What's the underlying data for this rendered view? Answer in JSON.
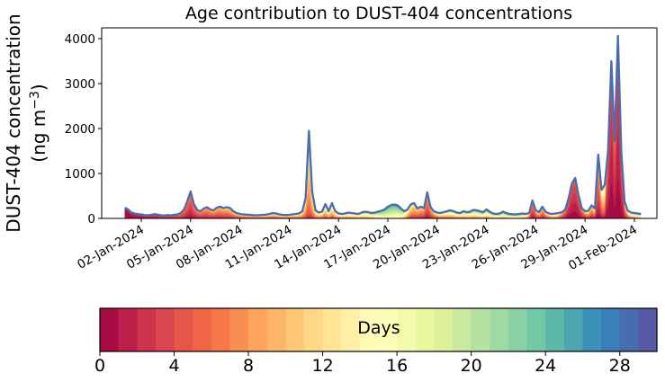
{
  "figure": {
    "title": "Age contribution to DUST-404 concentrations",
    "background_color": "#ffffff",
    "line_color": "#4a6cb0",
    "axis_color": "#000000",
    "y_axis": {
      "label_line1": "DUST-404 concentration",
      "label_units_prefix": "(ng m",
      "label_units_sup": "−3",
      "label_units_suffix": ")",
      "ticks": [
        0,
        1000,
        2000,
        3000,
        4000
      ],
      "limit": [
        0,
        4240
      ]
    },
    "x_axis": {
      "tick_labels": [
        "02-Jan-2024",
        "05-Jan-2024",
        "08-Jan-2024",
        "11-Jan-2024",
        "14-Jan-2024",
        "17-Jan-2024",
        "20-Jan-2024",
        "23-Jan-2024",
        "26-Jan-2024",
        "29-Jan-2024",
        "01-Feb-2024"
      ],
      "tick_day_offsets": [
        1,
        4,
        7,
        10,
        13,
        16,
        19,
        22,
        25,
        28,
        31
      ]
    },
    "colorbar": {
      "label": "Days",
      "ticks": [
        0,
        4,
        8,
        12,
        16,
        20,
        24,
        28
      ],
      "vmin": 0,
      "vmax": 30,
      "segments": 30,
      "cmap_name": "Spectral",
      "cmap_anchors": [
        "#9e0142",
        "#d53e4f",
        "#f46d43",
        "#fdae61",
        "#fee08b",
        "#ffffbf",
        "#e6f598",
        "#abdda4",
        "#66c2a5",
        "#3288bd",
        "#5e4fa2"
      ]
    }
  },
  "chart_data": {
    "type": "area",
    "subtype": "stacked_age_layers",
    "title": "Age contribution to DUST-404 concentrations",
    "ylabel": "DUST-404 concentration (ng m^-3)",
    "colorbar_label": "Days",
    "x_start_date": "2024-01-01",
    "x_step_days": 0.2,
    "n_points": 158,
    "n_age_bins": 30,
    "age_bin_width_days": 1,
    "ylim": [
      0,
      4240
    ],
    "peak_annotations": [
      {
        "date": "05-Jan-2024",
        "value": 600
      },
      {
        "date": "12-Jan-2024",
        "value": 1950
      },
      {
        "date": "19-Jan-2024",
        "value": 580
      },
      {
        "date": "28-Jan-2024",
        "value": 900
      },
      {
        "date": "29-Jan-2024",
        "value": 1420
      },
      {
        "date": "30-Jan-2024",
        "value": 3500
      },
      {
        "date": "31-Jan-2024",
        "value": 4060
      }
    ],
    "totals": [
      240,
      200,
      130,
      110,
      95,
      90,
      75,
      70,
      80,
      95,
      85,
      70,
      65,
      75,
      70,
      80,
      90,
      120,
      200,
      380,
      600,
      320,
      190,
      160,
      220,
      250,
      200,
      180,
      240,
      260,
      230,
      250,
      230,
      160,
      120,
      100,
      90,
      85,
      80,
      75,
      70,
      75,
      80,
      85,
      100,
      120,
      110,
      90,
      80,
      75,
      80,
      90,
      100,
      110,
      160,
      450,
      1950,
      600,
      180,
      130,
      150,
      320,
      160,
      340,
      160,
      110,
      100,
      110,
      130,
      120,
      110,
      100,
      130,
      150,
      140,
      120,
      130,
      150,
      170,
      200,
      260,
      300,
      310,
      290,
      220,
      160,
      200,
      310,
      340,
      220,
      260,
      230,
      580,
      250,
      160,
      130,
      120,
      140,
      160,
      180,
      160,
      130,
      120,
      160,
      140,
      150,
      190,
      180,
      160,
      140,
      200,
      150,
      110,
      100,
      110,
      150,
      120,
      100,
      95,
      90,
      100,
      110,
      100,
      120,
      400,
      180,
      140,
      260,
      150,
      110,
      100,
      110,
      120,
      140,
      200,
      450,
      780,
      900,
      520,
      230,
      160,
      170,
      290,
      220,
      1420,
      640,
      750,
      1500,
      3500,
      1720,
      4060,
      1500,
      380,
      170,
      130,
      120,
      110,
      100
    ],
    "mean_age_days": [
      0.6,
      0.8,
      1.0,
      1.2,
      1.4,
      1.6,
      1.8,
      2.0,
      2.2,
      2.4,
      2.6,
      2.8,
      3.0,
      3.2,
      3.4,
      3.6,
      3.8,
      4.0,
      4.0,
      3.8,
      3.5,
      4.2,
      4.6,
      5.0,
      5.0,
      5.2,
      5.5,
      5.8,
      6.0,
      6.0,
      6.2,
      6.5,
      6.8,
      7.0,
      7.5,
      8.0,
      8.0,
      8.2,
      8.5,
      8.5,
      8.8,
      9.0,
      9.0,
      9.2,
      9.0,
      9.2,
      9.5,
      9.8,
      10.0,
      10.0,
      10.2,
      10.0,
      10.0,
      10.2,
      10.0,
      10.0,
      10.0,
      10.5,
      11.0,
      11.5,
      11.5,
      11.0,
      12.0,
      11.5,
      12.0,
      12.5,
      13.0,
      13.0,
      13.5,
      14.0,
      14.0,
      14.5,
      15.0,
      15.0,
      15.5,
      16.0,
      17.0,
      18.0,
      19.0,
      19.5,
      20.0,
      20.0,
      20.0,
      19.5,
      19.0,
      16.0,
      12.0,
      9.0,
      8.0,
      7.0,
      6.5,
      6.0,
      5.0,
      6.0,
      8.0,
      10.0,
      11.0,
      12.0,
      12.5,
      13.0,
      13.5,
      14.0,
      14.0,
      14.5,
      15.0,
      15.0,
      15.5,
      15.5,
      16.0,
      16.0,
      16.0,
      16.5,
      17.0,
      17.0,
      17.5,
      17.0,
      17.5,
      18.0,
      18.0,
      18.5,
      18.0,
      17.0,
      15.0,
      10.0,
      4.0,
      6.0,
      8.0,
      6.0,
      8.0,
      10.0,
      12.0,
      12.0,
      10.0,
      6.0,
      4.0,
      2.5,
      2.0,
      2.0,
      2.5,
      4.0,
      6.0,
      8.0,
      6.0,
      8.0,
      4.0,
      8.0,
      10.0,
      2.5,
      1.5,
      3.0,
      1.5,
      2.5,
      6.0,
      10.0,
      13.0,
      15.0,
      16.0,
      17.0
    ],
    "age_spread_days": [
      0.5,
      0.6,
      0.7,
      0.8,
      0.9,
      1.0,
      1.2,
      1.4,
      1.5,
      1.6,
      1.8,
      1.9,
      2.0,
      2.1,
      2.2,
      2.3,
      2.4,
      2.5,
      2.6,
      2.7,
      2.8,
      2.9,
      3.0,
      3.1,
      3.2,
      3.3,
      3.4,
      3.5,
      3.6,
      3.7,
      3.8,
      3.9,
      4.0,
      4.0,
      4.2,
      4.3,
      4.4,
      4.5,
      4.5,
      4.6,
      4.7,
      4.8,
      4.8,
      5.0,
      5.0,
      5.0,
      5.0,
      5.2,
      5.2,
      5.2,
      5.2,
      5.2,
      5.0,
      4.8,
      4.5,
      4.2,
      4.0,
      4.5,
      5.0,
      5.2,
      5.5,
      5.5,
      5.5,
      5.5,
      5.5,
      5.5,
      5.8,
      5.8,
      6.0,
      6.0,
      6.0,
      6.0,
      6.0,
      6.0,
      6.0,
      5.5,
      5.0,
      4.5,
      4.2,
      4.0,
      4.0,
      4.0,
      4.0,
      4.2,
      4.5,
      5.0,
      5.0,
      4.5,
      4.2,
      4.0,
      4.0,
      3.8,
      3.5,
      4.0,
      5.0,
      5.5,
      6.0,
      6.0,
      6.2,
      6.5,
      6.5,
      6.5,
      6.5,
      6.8,
      6.8,
      6.8,
      7.0,
      7.0,
      7.0,
      7.0,
      7.0,
      7.0,
      7.0,
      7.0,
      7.0,
      7.0,
      7.0,
      7.0,
      7.0,
      7.0,
      7.0,
      6.5,
      6.0,
      5.0,
      3.0,
      4.0,
      4.5,
      4.0,
      4.5,
      5.0,
      5.5,
      5.5,
      5.0,
      4.0,
      3.0,
      2.5,
      2.0,
      2.0,
      2.5,
      3.5,
      5.0,
      6.0,
      5.0,
      6.0,
      4.5,
      6.0,
      7.0,
      2.5,
      2.0,
      3.0,
      2.0,
      3.0,
      5.0,
      6.0,
      7.0,
      7.0,
      7.0,
      7.0
    ]
  }
}
